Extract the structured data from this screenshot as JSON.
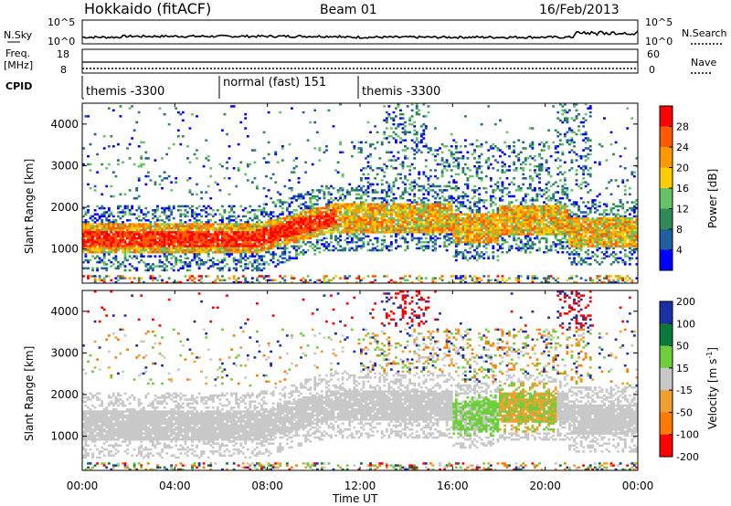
{
  "header": {
    "site": "Hokkaido (fitACF)",
    "beam": "Beam 01",
    "date": "16/Feb/2013"
  },
  "noise_panel": {
    "left_label": "N.Sky",
    "right_label": "N.Search",
    "left_ticks": [
      "10^5",
      "10^0"
    ],
    "right_ticks": [
      "10^5",
      "10^0"
    ]
  },
  "freq_panel": {
    "left_label_1": "Freq.",
    "left_label_2": "[MHz]",
    "right_label": "Nave",
    "left_ticks": [
      "18",
      "8"
    ],
    "right_ticks": [
      "60",
      "0"
    ]
  },
  "cpid_panel": {
    "label": "CPID",
    "segments": [
      {
        "start": 0,
        "end": 6,
        "text": "themis -3300"
      },
      {
        "start": 6,
        "end": 12,
        "text": "normal (fast) 151"
      },
      {
        "start": 12,
        "end": 24,
        "text": "themis -3300"
      }
    ]
  },
  "x_axis": {
    "title": "Time UT",
    "ticks": [
      "00:00",
      "04:00",
      "08:00",
      "12:00",
      "16:00",
      "20:00",
      "00:00"
    ]
  },
  "colors": {
    "power": [
      "#0000ff",
      "#1f5fa0",
      "#2e8b57",
      "#66c266",
      "#ffcc00",
      "#ff9900",
      "#ff5a00",
      "#ff0000"
    ],
    "velocity": [
      "#1b2fa8",
      "#0a7a3a",
      "#6ccf3a",
      "#c8c8c8",
      "#f0a030",
      "#ff7a00",
      "#ff0000"
    ]
  },
  "chart_data": [
    {
      "type": "heatmap",
      "title": "Power",
      "xlabel": "Time UT",
      "ylabel": "Slant Range [km]",
      "xlim": [
        0,
        24
      ],
      "ylim": [
        180,
        4500
      ],
      "yticks": [
        "1000",
        "2000",
        "3000",
        "4000"
      ],
      "colorbar_label": "Power [dB]",
      "colorbar_ticks": [
        "4",
        "8",
        "12",
        "16",
        "20",
        "24",
        "28"
      ]
    },
    {
      "type": "heatmap",
      "title": "Velocity",
      "xlabel": "Time UT",
      "ylabel": "Slant Range [km]",
      "xlim": [
        0,
        24
      ],
      "ylim": [
        180,
        4500
      ],
      "yticks": [
        "1000",
        "2000",
        "3000",
        "4000"
      ],
      "colorbar_label": "Velocity [m s",
      "colorbar_label_sup": "-1",
      "colorbar_label_end": "]",
      "colorbar_ticks": [
        "200",
        "100",
        "50",
        "15",
        "-15",
        "-50",
        "-100",
        "-200"
      ]
    }
  ]
}
